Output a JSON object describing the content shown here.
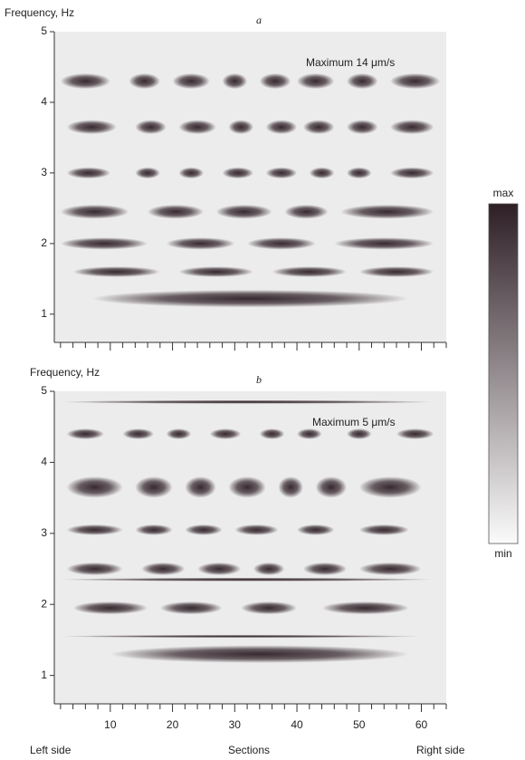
{
  "chart_data": [
    {
      "type": "heatmap",
      "panel": "a",
      "ylabel": "Frequency, Hz",
      "annotation": "Maximum 14 μm/s",
      "color": "#2e1f26",
      "xlim": [
        1,
        64
      ],
      "xticks": [
        10,
        20,
        30,
        40,
        50,
        60
      ],
      "xminorticks": [
        2,
        4,
        6,
        8,
        12,
        14,
        16,
        18,
        22,
        24,
        26,
        28,
        32,
        34,
        36,
        38,
        42,
        44,
        46,
        48,
        52,
        54,
        56,
        58,
        62,
        64
      ],
      "xticklabels": false,
      "ylim": [
        0.6,
        5
      ],
      "yticks": [
        1,
        2,
        3,
        4,
        5
      ],
      "colorbar": {
        "max_label": "max",
        "min_label": "min"
      },
      "bands": [
        {
          "frequency": 4.3,
          "width": 0.22,
          "segments": [
            [
              2,
              10
            ],
            [
              13,
              18
            ],
            [
              20,
              26
            ],
            [
              28,
              32
            ],
            [
              34,
              39
            ],
            [
              40,
              46
            ],
            [
              48,
              53
            ],
            [
              55,
              63
            ]
          ]
        },
        {
          "frequency": 3.65,
          "width": 0.2,
          "segments": [
            [
              3,
              11
            ],
            [
              14,
              19
            ],
            [
              21,
              27
            ],
            [
              29,
              33
            ],
            [
              35,
              40
            ],
            [
              41,
              46
            ],
            [
              48,
              53
            ],
            [
              55,
              62
            ]
          ]
        },
        {
          "frequency": 3.0,
          "width": 0.16,
          "segments": [
            [
              3,
              10
            ],
            [
              14,
              18
            ],
            [
              21,
              25
            ],
            [
              28,
              33
            ],
            [
              35,
              40
            ],
            [
              42,
              46
            ],
            [
              48,
              52
            ],
            [
              55,
              62
            ]
          ]
        },
        {
          "frequency": 2.45,
          "width": 0.2,
          "segments": [
            [
              2,
              13
            ],
            [
              16,
              25
            ],
            [
              27,
              36
            ],
            [
              38,
              45
            ],
            [
              47,
              62
            ]
          ]
        },
        {
          "frequency": 2.0,
          "width": 0.17,
          "segments": [
            [
              2,
              16
            ],
            [
              19,
              30
            ],
            [
              32,
              43
            ],
            [
              46,
              62
            ]
          ]
        },
        {
          "frequency": 1.6,
          "width": 0.15,
          "segments": [
            [
              4,
              18
            ],
            [
              21,
              33
            ],
            [
              36,
              48
            ],
            [
              50,
              62
            ]
          ]
        },
        {
          "frequency": 1.22,
          "width": 0.25,
          "segments": [
            [
              7,
              58
            ]
          ]
        }
      ]
    },
    {
      "type": "heatmap",
      "panel": "b",
      "ylabel": "Frequency, Hz",
      "annotation": "Maximum 5 μm/s",
      "color": "#2e1f26",
      "xlim": [
        1,
        64
      ],
      "xticks": [
        10,
        20,
        30,
        40,
        50,
        60
      ],
      "xminorticks": [
        2,
        4,
        6,
        8,
        12,
        14,
        16,
        18,
        22,
        24,
        26,
        28,
        32,
        34,
        36,
        38,
        42,
        44,
        46,
        48,
        52,
        54,
        56,
        58,
        62,
        64
      ],
      "xticklabels": true,
      "ylim": [
        0.6,
        5
      ],
      "yticks": [
        1,
        2,
        3,
        4,
        5
      ],
      "xlabel": "Sections",
      "x_left_label": "Left side",
      "x_right_label": "Right side",
      "bands": [
        {
          "frequency": 4.85,
          "width": 0.05,
          "segments": [
            [
              2,
              62
            ]
          ]
        },
        {
          "frequency": 4.4,
          "width": 0.15,
          "segments": [
            [
              3,
              9
            ],
            [
              12,
              17
            ],
            [
              19,
              23
            ],
            [
              26,
              31
            ],
            [
              34,
              38
            ],
            [
              40,
              44
            ],
            [
              48,
              52
            ],
            [
              56,
              62
            ]
          ]
        },
        {
          "frequency": 3.65,
          "width": 0.3,
          "segments": [
            [
              3,
              12
            ],
            [
              14,
              20
            ],
            [
              22,
              27
            ],
            [
              29,
              35
            ],
            [
              37,
              41
            ],
            [
              43,
              48
            ],
            [
              50,
              60
            ]
          ]
        },
        {
          "frequency": 3.05,
          "width": 0.15,
          "segments": [
            [
              3,
              12
            ],
            [
              14,
              20
            ],
            [
              22,
              28
            ],
            [
              30,
              37
            ],
            [
              40,
              46
            ],
            [
              50,
              58
            ]
          ]
        },
        {
          "frequency": 2.5,
          "width": 0.18,
          "segments": [
            [
              3,
              12
            ],
            [
              15,
              22
            ],
            [
              24,
              31
            ],
            [
              33,
              38
            ],
            [
              41,
              48
            ],
            [
              50,
              60
            ]
          ]
        },
        {
          "frequency": 2.35,
          "width": 0.05,
          "segments": [
            [
              2,
              62
            ]
          ]
        },
        {
          "frequency": 1.95,
          "width": 0.18,
          "segments": [
            [
              4,
              16
            ],
            [
              18,
              28
            ],
            [
              31,
              40
            ],
            [
              44,
              58
            ]
          ]
        },
        {
          "frequency": 1.55,
          "width": 0.04,
          "segments": [
            [
              2,
              60
            ]
          ]
        },
        {
          "frequency": 1.3,
          "width": 0.25,
          "segments": [
            [
              10,
              58
            ]
          ]
        }
      ]
    }
  ]
}
